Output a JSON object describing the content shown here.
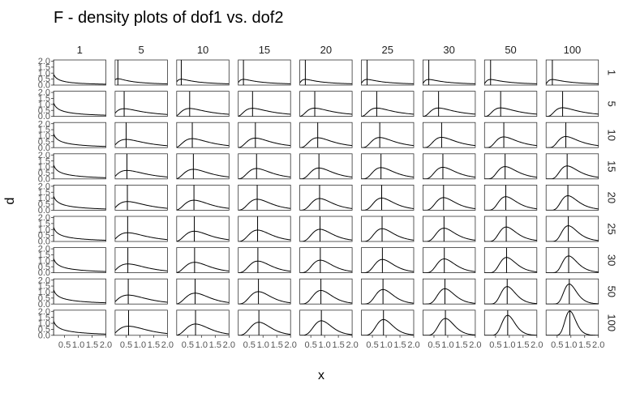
{
  "chart_data": {
    "type": "line",
    "title": "F - density plots of dof1 vs. dof2",
    "xlabel": "x",
    "ylabel": "d",
    "facet_columns_variable": "dof1",
    "facet_rows_variable": "dof2",
    "col_labels": [
      "1",
      "5",
      "10",
      "15",
      "20",
      "25",
      "30",
      "50",
      "100"
    ],
    "row_labels": [
      "1",
      "5",
      "10",
      "15",
      "20",
      "25",
      "30",
      "50",
      "100"
    ],
    "xlim": [
      0.1,
      2.0
    ],
    "ylim": [
      0,
      2.1
    ],
    "x_ticks": [
      0.5,
      1.0,
      1.5,
      2.0
    ],
    "x_tick_labels": [
      "0.5",
      "1.0",
      "1.5",
      "2.0"
    ],
    "y_ticks": [
      0.0,
      0.5,
      1.0,
      1.5,
      2.0
    ],
    "y_tick_labels": [
      "0.0",
      "0.5",
      "1.0",
      "1.5",
      "2.0"
    ],
    "series_description": "each panel: F(dof1, dof2) density curve over x, with a vertical reference line at the distribution mode",
    "x_values": [
      0.1,
      0.2,
      0.3,
      0.4,
      0.5,
      0.6,
      0.7,
      0.8,
      0.9,
      1.0,
      1.1,
      1.2,
      1.3,
      1.4,
      1.5,
      1.6,
      1.7,
      1.8,
      1.9,
      2.0
    ],
    "grid": false,
    "panel_border": true,
    "line_color": "#000000"
  }
}
